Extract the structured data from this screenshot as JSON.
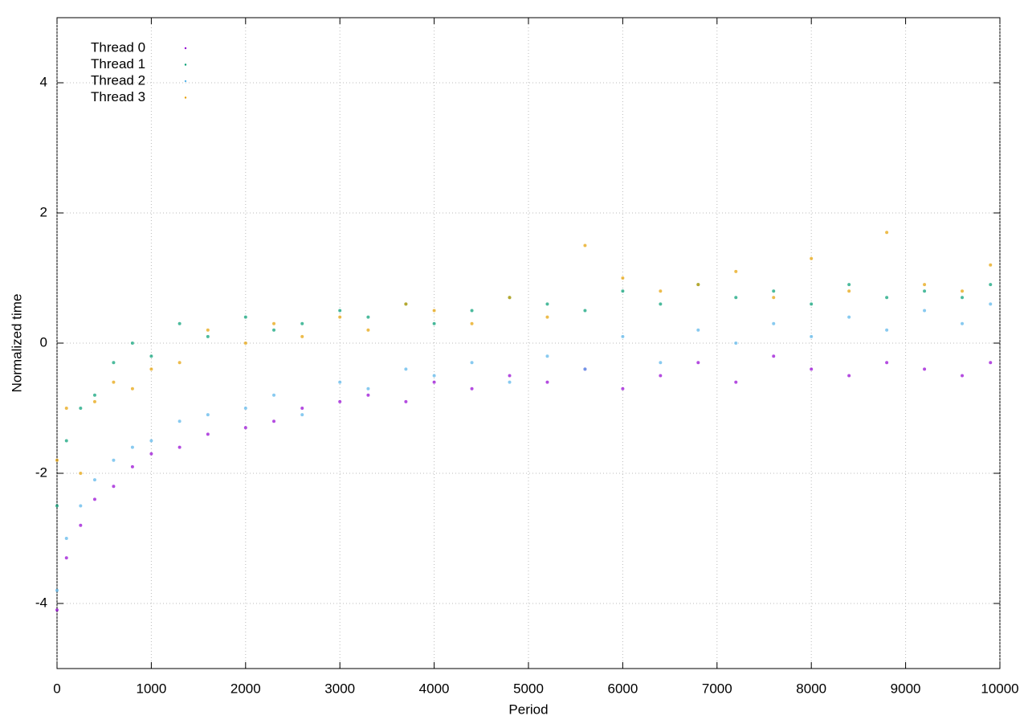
{
  "chart_data": {
    "type": "scatter",
    "x_label": "Period",
    "y_label": "Normalized time",
    "x": [
      0,
      100,
      250,
      400,
      600,
      800,
      1000,
      1300,
      1600,
      2000,
      2300,
      2600,
      3000,
      3300,
      3700,
      4000,
      4400,
      4800,
      5200,
      5600,
      6000,
      6400,
      6800,
      7200,
      7600,
      8000,
      8400,
      8800,
      9200,
      9600,
      9900
    ],
    "series": [
      {
        "name": "Thread 0",
        "color": "#9400d3",
        "values": [
          -4.1,
          -3.3,
          -2.8,
          -2.4,
          -2.2,
          -1.9,
          -1.7,
          -1.6,
          -1.4,
          -1.3,
          -1.2,
          -1.0,
          -0.9,
          -0.8,
          -0.9,
          -0.6,
          -0.7,
          -0.5,
          -0.6,
          -0.4,
          -0.7,
          -0.5,
          -0.3,
          -0.6,
          -0.2,
          -0.4,
          -0.5,
          -0.3,
          -0.4,
          -0.5,
          -0.3
        ]
      },
      {
        "name": "Thread 1",
        "color": "#009e73",
        "values": [
          -2.5,
          -1.5,
          -1.0,
          -0.8,
          -0.3,
          0.0,
          -0.2,
          0.3,
          0.1,
          0.4,
          0.2,
          0.3,
          0.5,
          0.4,
          0.6,
          0.3,
          0.5,
          0.7,
          0.6,
          0.5,
          0.8,
          0.6,
          0.9,
          0.7,
          0.8,
          0.6,
          0.9,
          0.7,
          0.8,
          0.7,
          0.9
        ]
      },
      {
        "name": "Thread 2",
        "color": "#56b4e9",
        "values": [
          -3.8,
          -3.0,
          -2.5,
          -2.1,
          -1.8,
          -1.6,
          -1.5,
          -1.2,
          -1.1,
          -1.0,
          -0.8,
          -1.1,
          -0.6,
          -0.7,
          -0.4,
          -0.5,
          -0.3,
          -0.6,
          -0.2,
          -0.4,
          0.1,
          -0.3,
          0.2,
          0.0,
          0.3,
          0.1,
          0.4,
          0.2,
          0.5,
          0.3,
          0.6
        ]
      },
      {
        "name": "Thread 3",
        "color": "#e69f00",
        "values": [
          -1.8,
          -1.0,
          -2.0,
          -0.9,
          -0.6,
          -0.7,
          -0.4,
          -0.3,
          0.2,
          0.0,
          0.3,
          0.1,
          0.4,
          0.2,
          0.6,
          0.5,
          0.3,
          0.7,
          0.4,
          1.5,
          1.0,
          0.8,
          0.9,
          1.1,
          0.7,
          1.3,
          0.8,
          1.7,
          0.9,
          0.8,
          1.2
        ]
      }
    ],
    "xlim": [
      0,
      10000
    ],
    "xticks": [
      0,
      1000,
      2000,
      3000,
      4000,
      5000,
      6000,
      7000,
      8000,
      9000,
      10000
    ],
    "ylim": [
      -5,
      5
    ],
    "yticks": [
      -4,
      -2,
      0,
      2,
      4
    ],
    "grid": true,
    "legend": "top-left"
  }
}
